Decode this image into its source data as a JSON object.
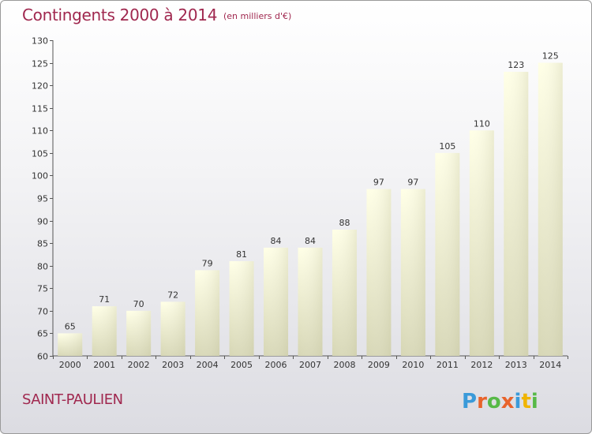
{
  "header": {
    "title": "Contingents 2000 à 2014",
    "subtitle": "(en milliers d'€)"
  },
  "footer": {
    "place": "SAINT-PAULIEN",
    "logo_text": "Proxiti",
    "logo_colors": [
      "#3a9ad9",
      "#e8632b",
      "#57b947",
      "#e8632b",
      "#3a9ad9",
      "#f0b400",
      "#57b947"
    ]
  },
  "colors": {
    "accent": "#a0284f",
    "bar_top": "#ffffe6",
    "bar_bottom": "#d6d6b4"
  },
  "chart_data": {
    "type": "bar",
    "title": "Contingents 2000 à 2014",
    "subtitle": "(en milliers d'€)",
    "categories": [
      "2000",
      "2001",
      "2002",
      "2003",
      "2004",
      "2005",
      "2006",
      "2007",
      "2008",
      "2009",
      "2010",
      "2011",
      "2012",
      "2013",
      "2014"
    ],
    "values": [
      65,
      71,
      70,
      72,
      79,
      81,
      84,
      84,
      88,
      97,
      97,
      105,
      110,
      123,
      125
    ],
    "ylim": [
      60,
      130
    ],
    "yticks": [
      60,
      65,
      70,
      75,
      80,
      85,
      90,
      95,
      100,
      105,
      110,
      115,
      120,
      125,
      130
    ],
    "xlabel": "",
    "ylabel": "",
    "grid": false,
    "data_labels": true
  }
}
